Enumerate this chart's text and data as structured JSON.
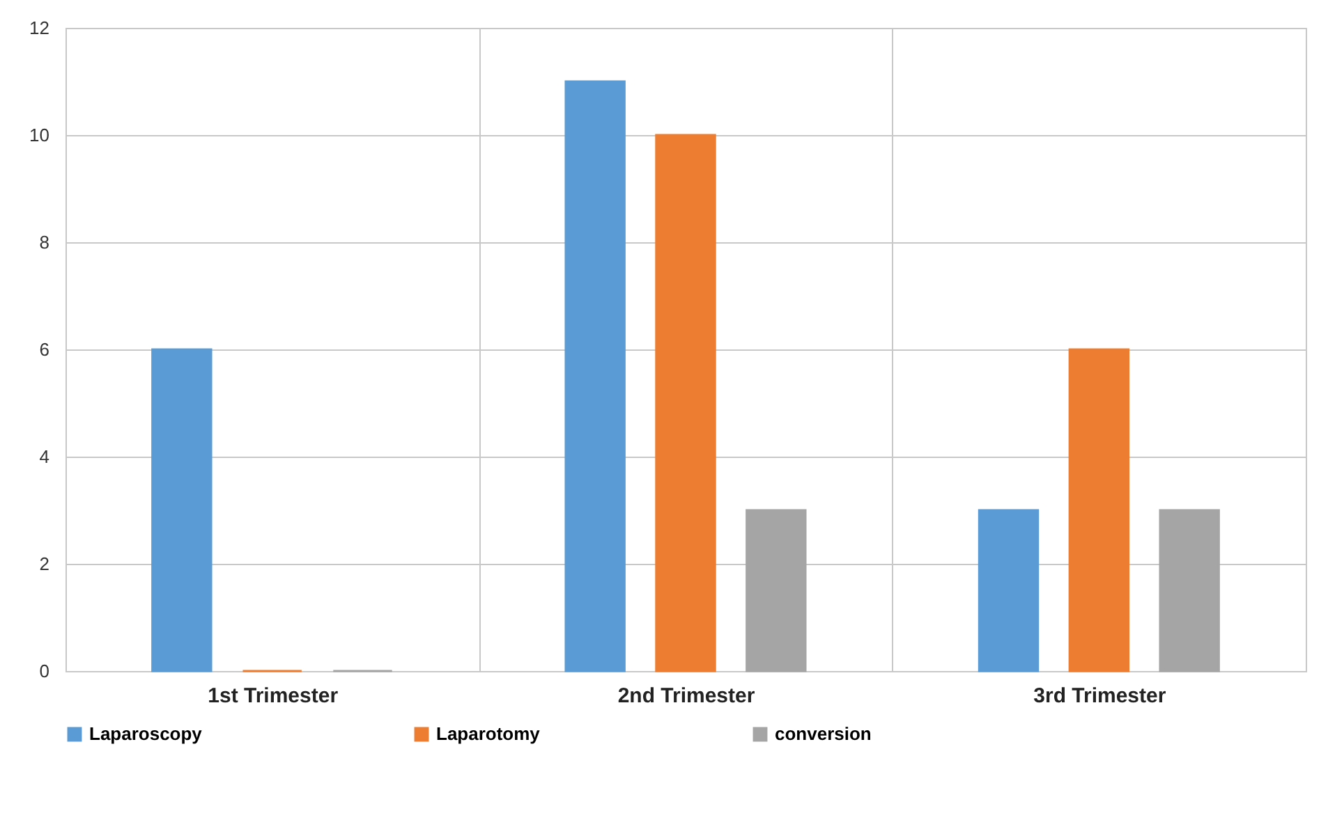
{
  "chart_data": {
    "type": "bar",
    "categories": [
      "1st Trimester",
      "2nd Trimester",
      "3rd Trimester"
    ],
    "series": [
      {
        "name": "Laparoscopy",
        "color": "#5b9bd5",
        "values": [
          6,
          11,
          3
        ]
      },
      {
        "name": "Laparotomy",
        "color": "#ed7d31",
        "values": [
          0,
          10,
          6
        ]
      },
      {
        "name": "conversion",
        "color": "#a5a5a5",
        "values": [
          0,
          3,
          3
        ]
      }
    ],
    "ylim": [
      0,
      12
    ],
    "yticks": [
      0,
      2,
      4,
      6,
      8,
      10,
      12
    ],
    "grid": true,
    "legend": "bottom"
  }
}
